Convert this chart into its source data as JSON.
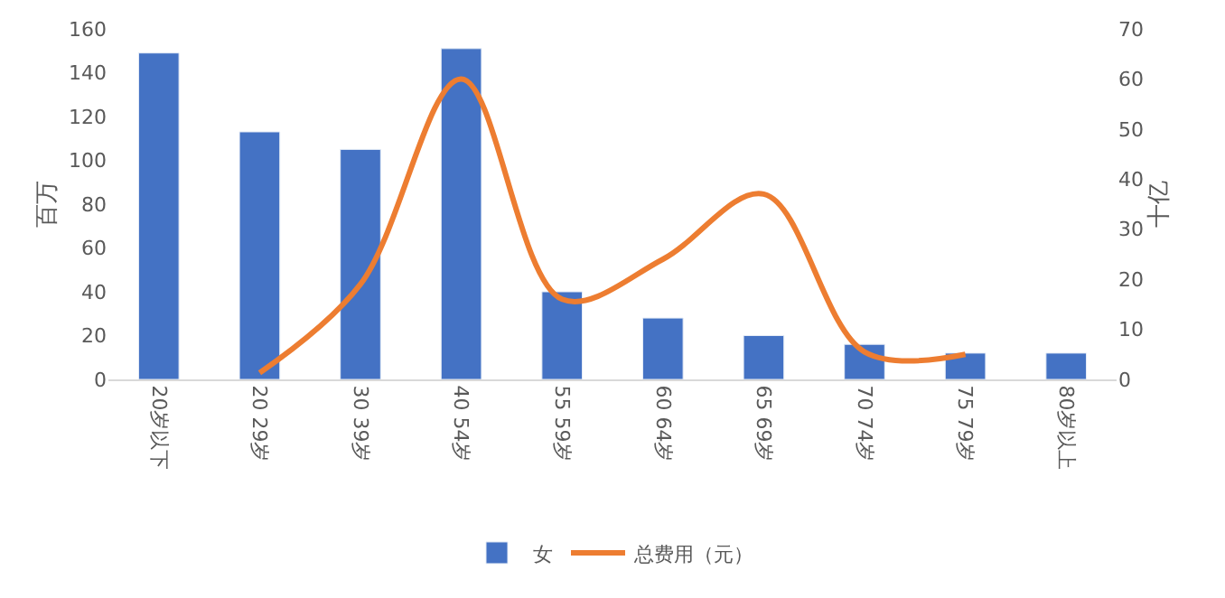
{
  "chart_data": {
    "type": "bar",
    "categories": [
      "20岁以下",
      "20 29岁",
      "30 39岁",
      "40 54岁",
      "55 59岁",
      "60 64岁",
      "65 69岁",
      "70 74岁",
      "75 79岁",
      "80岁以上"
    ],
    "ylabel": "百万",
    "y2label": "十亿",
    "ylim": [
      0,
      160
    ],
    "yticks": [
      0,
      20,
      40,
      60,
      80,
      100,
      120,
      140,
      160
    ],
    "y2lim": [
      0,
      70
    ],
    "y2ticks": [
      0,
      10,
      20,
      30,
      40,
      50,
      60,
      70
    ],
    "grid": false,
    "legend": "bottom",
    "series": [
      {
        "name": "女",
        "color": "#4472c4",
        "values": [
          149,
          113,
          105,
          151,
          40,
          28,
          20,
          16,
          12,
          12
        ]
      },
      {
        "name": "总费用（元）",
        "type": "line",
        "axis": "y2",
        "color": "#ed7d31",
        "values": [
          null,
          1.3,
          19,
          60,
          16,
          24,
          37,
          5.5,
          5,
          null
        ]
      }
    ]
  }
}
